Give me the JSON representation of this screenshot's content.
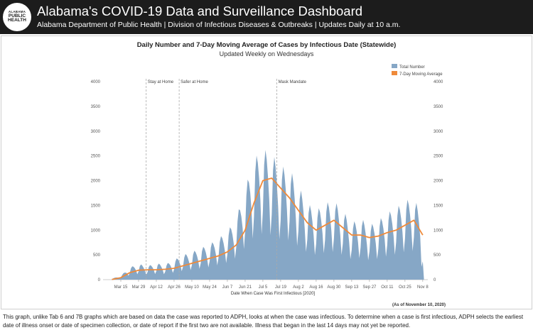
{
  "header": {
    "logo_lines": [
      "ALABAMA",
      "PUBLIC",
      "HEALTH"
    ],
    "title": "Alabama's COVID-19 Data and Surveillance Dashboard",
    "subtitle": "Alabama Department of Public Health | Division of Infectious Diseases & Outbreaks | Updates Daily at 10 a.m."
  },
  "chart": {
    "title": "Daily Number and 7-Day Moving Average of Cases by Infectious Date (Statewide)",
    "subtitle": "Updated Weekly on Wednesdays",
    "as_of": "(As of November 10, 2020)"
  },
  "chart_data": {
    "type": "area",
    "xlabel": "Date When Case Was First Infectious [2020]",
    "ylabel": "",
    "ylim": [
      0,
      4000
    ],
    "y_ticks": [
      0,
      500,
      1000,
      1500,
      2000,
      2500,
      3000,
      3500,
      4000
    ],
    "x_tick_labels": [
      "Mar 15",
      "Mar 29",
      "Apr 12",
      "Apr 26",
      "May 10",
      "May 24",
      "Jun 7",
      "Jun 21",
      "Jul 5",
      "Jul 19",
      "Aug 2",
      "Aug 16",
      "Aug 30",
      "Sep 13",
      "Sep 27",
      "Oct 11",
      "Oct 25",
      "Nov 8"
    ],
    "legend_position": "top-right",
    "grid": false,
    "annotations": [
      {
        "label": "Stay at Home",
        "date": "Apr 4"
      },
      {
        "label": "Safer at Home",
        "date": "Apr 30"
      },
      {
        "label": "Mask Mandate",
        "date": "Jul 16"
      }
    ],
    "series": [
      {
        "name": "Total Number",
        "type": "area",
        "color": "#86a7c6",
        "weekly_dates": [
          "Mar 8",
          "Mar 15",
          "Mar 22",
          "Mar 29",
          "Apr 5",
          "Apr 12",
          "Apr 19",
          "Apr 26",
          "May 3",
          "May 10",
          "May 17",
          "May 24",
          "May 31",
          "Jun 7",
          "Jun 14",
          "Jun 21",
          "Jun 28",
          "Jul 5",
          "Jul 12",
          "Jul 19",
          "Jul 26",
          "Aug 2",
          "Aug 9",
          "Aug 16",
          "Aug 23",
          "Aug 30",
          "Sep 6",
          "Sep 13",
          "Sep 20",
          "Sep 27",
          "Oct 4",
          "Oct 11",
          "Oct 18",
          "Oct 25",
          "Nov 1",
          "Nov 8"
        ],
        "weekly_peaks": [
          20,
          80,
          250,
          320,
          280,
          330,
          310,
          400,
          500,
          560,
          640,
          720,
          840,
          980,
          1250,
          1850,
          2450,
          2650,
          2550,
          2300,
          2250,
          1900,
          1550,
          1400,
          1550,
          1600,
          1400,
          1150,
          1250,
          1100,
          1200,
          1350,
          1450,
          1600,
          1650,
          1300
        ]
      },
      {
        "name": "7-Day Moving Average",
        "type": "line",
        "color": "#ef8a3a",
        "weekly_dates": [
          "Mar 8",
          "Mar 15",
          "Mar 22",
          "Mar 29",
          "Apr 5",
          "Apr 12",
          "Apr 19",
          "Apr 26",
          "May 3",
          "May 10",
          "May 17",
          "May 24",
          "May 31",
          "Jun 7",
          "Jun 14",
          "Jun 21",
          "Jun 28",
          "Jul 5",
          "Jul 12",
          "Jul 19",
          "Jul 26",
          "Aug 2",
          "Aug 9",
          "Aug 16",
          "Aug 23",
          "Aug 30",
          "Sep 6",
          "Sep 13",
          "Sep 20",
          "Sep 27",
          "Oct 4",
          "Oct 11",
          "Oct 18",
          "Oct 25",
          "Nov 1",
          "Nov 8"
        ],
        "values": [
          5,
          40,
          140,
          190,
          200,
          200,
          210,
          230,
          280,
          330,
          380,
          430,
          480,
          560,
          700,
          1000,
          1550,
          2000,
          2050,
          1850,
          1650,
          1400,
          1150,
          1000,
          1100,
          1200,
          1050,
          900,
          900,
          850,
          880,
          950,
          1000,
          1100,
          1200,
          900
        ]
      }
    ]
  },
  "footnote": "This graph, unlike Tab 6 and 7B graphs which are based on data the case was reported to ADPH, looks at when the case was infectious. To determine when a case is first infectious, ADPH selects the earliest date of illness onset or date of specimen collection, or date of report if the first two are not available. Illness that began in the last 14 days may not yet be reported."
}
